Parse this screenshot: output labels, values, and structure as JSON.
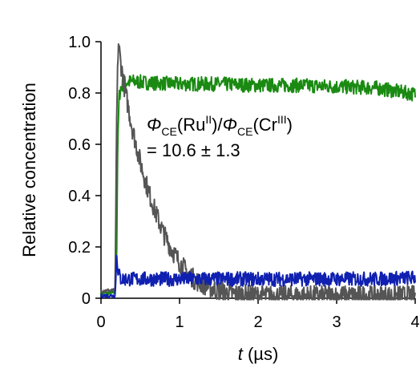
{
  "chart_data": {
    "type": "line",
    "xlabel_var": "t",
    "xlabel_unit": " (µs)",
    "ylabel": "Relative concentration",
    "xlim": [
      0,
      4
    ],
    "ylim": [
      0,
      1.0
    ],
    "x_ticks": [
      "0",
      "1",
      "2",
      "3",
      "4"
    ],
    "y_ticks": [
      "0",
      "0.2",
      "0.4",
      "0.6",
      "0.8",
      "1.0"
    ],
    "grid": false,
    "series": [
      {
        "color": "#1a8a12",
        "x": [
          0.0,
          0.18,
          0.2,
          0.21,
          0.23,
          0.25,
          0.3,
          0.4,
          0.6,
          1.0,
          1.5,
          2.0,
          2.5,
          3.0,
          3.5,
          3.8,
          4.0
        ],
        "y": [
          0.02,
          0.02,
          0.2,
          0.55,
          0.78,
          0.82,
          0.84,
          0.845,
          0.84,
          0.835,
          0.835,
          0.83,
          0.83,
          0.825,
          0.82,
          0.805,
          0.795
        ]
      },
      {
        "color": "#555555",
        "x": [
          0.0,
          0.18,
          0.2,
          0.22,
          0.25,
          0.3,
          0.4,
          0.5,
          0.6,
          0.7,
          0.8,
          0.9,
          1.0,
          1.1,
          1.2,
          1.4,
          1.6,
          2.0,
          2.5,
          3.0,
          3.5,
          4.0
        ],
        "y": [
          0.03,
          0.03,
          0.7,
          1.0,
          0.92,
          0.82,
          0.66,
          0.53,
          0.42,
          0.33,
          0.25,
          0.19,
          0.14,
          0.1,
          0.07,
          0.04,
          0.02,
          0.01,
          0.01,
          0.01,
          0.01,
          0.01
        ]
      },
      {
        "color": "#1020b0",
        "x": [
          0.0,
          0.18,
          0.2,
          0.22,
          0.25,
          0.5,
          1.0,
          1.5,
          2.0,
          2.5,
          3.0,
          3.5,
          4.0
        ],
        "y": [
          0.01,
          0.01,
          0.17,
          0.1,
          0.075,
          0.075,
          0.075,
          0.075,
          0.075,
          0.075,
          0.075,
          0.075,
          0.08
        ]
      }
    ],
    "annotation": {
      "phi": "Φ",
      "sub_ce": "CE",
      "ru": "(Ru",
      "sup_ii": "II",
      "slash": ")/",
      "cr": "(Cr",
      "sup_iii": "III",
      "close": ")",
      "line2": "= 10.6 ± 1.3"
    }
  }
}
